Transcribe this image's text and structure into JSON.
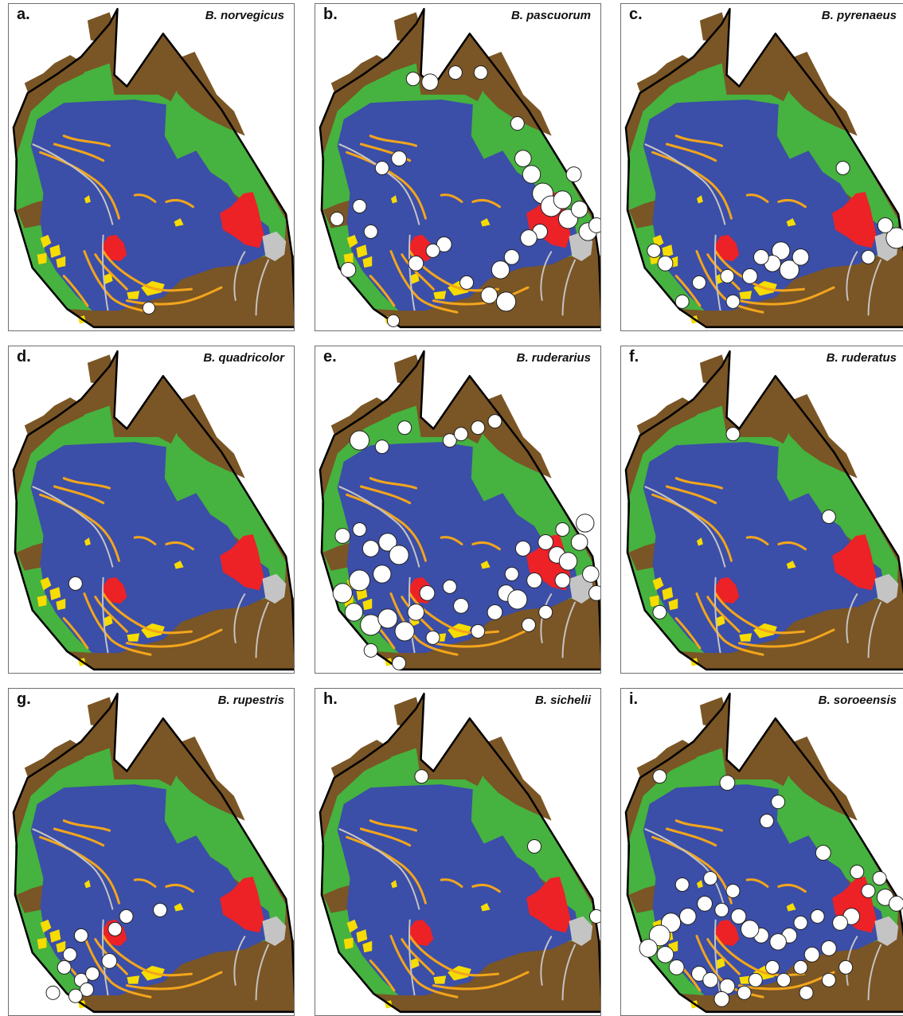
{
  "colors": {
    "blue": "#3b4ea8",
    "green": "#46b23f",
    "brown": "#7a5525",
    "red": "#ec2227",
    "yellow": "#f6dc00",
    "orange": "#f2a51c",
    "gray": "#c4c4c4",
    "outline": "#000000",
    "dot_fill": "#ffffff",
    "dot_stroke": "#222222"
  },
  "panels": [
    {
      "letter": "a.",
      "species": "B. norvegicus",
      "points": [
        [
          0.48,
          0.94,
          0.4
        ]
      ]
    },
    {
      "letter": "b.",
      "species": "B. pascuorum",
      "points": [
        [
          0.33,
          0.22,
          0.5
        ],
        [
          0.39,
          0.23,
          0.7
        ],
        [
          0.48,
          0.2,
          0.5
        ],
        [
          0.57,
          0.2,
          0.5
        ],
        [
          0.7,
          0.36,
          0.5
        ],
        [
          0.72,
          0.47,
          0.7
        ],
        [
          0.75,
          0.52,
          0.8
        ],
        [
          0.79,
          0.58,
          1.0
        ],
        [
          0.82,
          0.62,
          1.0
        ],
        [
          0.86,
          0.6,
          0.8
        ],
        [
          0.88,
          0.66,
          0.9
        ],
        [
          0.92,
          0.63,
          0.7
        ],
        [
          0.95,
          0.7,
          0.8
        ],
        [
          0.9,
          0.52,
          0.6
        ],
        [
          0.98,
          0.68,
          0.6
        ],
        [
          0.78,
          0.7,
          0.6
        ],
        [
          0.74,
          0.72,
          0.7
        ],
        [
          0.68,
          0.78,
          0.6
        ],
        [
          0.64,
          0.82,
          0.8
        ],
        [
          0.6,
          0.9,
          0.7
        ],
        [
          0.66,
          0.92,
          0.9
        ],
        [
          0.52,
          0.86,
          0.5
        ],
        [
          0.44,
          0.74,
          0.6
        ],
        [
          0.4,
          0.76,
          0.5
        ],
        [
          0.34,
          0.8,
          0.6
        ],
        [
          0.18,
          0.7,
          0.5
        ],
        [
          0.14,
          0.62,
          0.5
        ],
        [
          0.1,
          0.82,
          0.6
        ],
        [
          0.06,
          0.66,
          0.5
        ],
        [
          0.22,
          0.5,
          0.5
        ],
        [
          0.28,
          0.47,
          0.6
        ],
        [
          0.26,
          0.98,
          0.4
        ]
      ]
    },
    {
      "letter": "c.",
      "species": "B. pyrenaeus",
      "points": [
        [
          0.77,
          0.5,
          0.5
        ],
        [
          0.55,
          0.76,
          0.8
        ],
        [
          0.58,
          0.82,
          0.9
        ],
        [
          0.62,
          0.78,
          0.7
        ],
        [
          0.52,
          0.8,
          0.7
        ],
        [
          0.48,
          0.78,
          0.6
        ],
        [
          0.44,
          0.84,
          0.6
        ],
        [
          0.36,
          0.84,
          0.5
        ],
        [
          0.14,
          0.8,
          0.6
        ],
        [
          0.1,
          0.76,
          0.5
        ],
        [
          0.26,
          0.86,
          0.5
        ],
        [
          0.2,
          0.92,
          0.5
        ],
        [
          0.38,
          0.92,
          0.5
        ],
        [
          0.86,
          0.78,
          0.5
        ],
        [
          0.96,
          0.72,
          1.0
        ],
        [
          0.92,
          0.68,
          0.6
        ]
      ]
    },
    {
      "letter": "d.",
      "species": "B. quadricolor",
      "points": [
        [
          0.22,
          0.73,
          0.5
        ]
      ]
    },
    {
      "letter": "e.",
      "species": "B. ruderarius",
      "points": [
        [
          0.14,
          0.28,
          0.9
        ],
        [
          0.22,
          0.3,
          0.5
        ],
        [
          0.3,
          0.24,
          0.5
        ],
        [
          0.46,
          0.28,
          0.5
        ],
        [
          0.5,
          0.26,
          0.5
        ],
        [
          0.56,
          0.24,
          0.5
        ],
        [
          0.62,
          0.22,
          0.5
        ],
        [
          0.08,
          0.58,
          0.6
        ],
        [
          0.14,
          0.56,
          0.5
        ],
        [
          0.18,
          0.62,
          0.7
        ],
        [
          0.24,
          0.6,
          0.8
        ],
        [
          0.28,
          0.64,
          0.9
        ],
        [
          0.22,
          0.7,
          0.8
        ],
        [
          0.14,
          0.72,
          1.0
        ],
        [
          0.08,
          0.76,
          0.9
        ],
        [
          0.12,
          0.82,
          0.8
        ],
        [
          0.18,
          0.86,
          1.0
        ],
        [
          0.24,
          0.84,
          0.9
        ],
        [
          0.3,
          0.88,
          0.9
        ],
        [
          0.34,
          0.82,
          0.7
        ],
        [
          0.38,
          0.76,
          0.6
        ],
        [
          0.46,
          0.74,
          0.5
        ],
        [
          0.5,
          0.8,
          0.6
        ],
        [
          0.56,
          0.88,
          0.5
        ],
        [
          0.62,
          0.82,
          0.6
        ],
        [
          0.66,
          0.76,
          0.7
        ],
        [
          0.7,
          0.78,
          0.9
        ],
        [
          0.76,
          0.72,
          0.6
        ],
        [
          0.8,
          0.6,
          0.6
        ],
        [
          0.84,
          0.64,
          0.7
        ],
        [
          0.88,
          0.66,
          0.8
        ],
        [
          0.92,
          0.6,
          0.7
        ],
        [
          0.96,
          0.7,
          0.7
        ],
        [
          0.98,
          0.76,
          0.6
        ],
        [
          0.86,
          0.72,
          0.6
        ],
        [
          0.72,
          0.62,
          0.6
        ],
        [
          0.68,
          0.7,
          0.5
        ],
        [
          0.8,
          0.82,
          0.5
        ],
        [
          0.28,
          0.98,
          0.5
        ],
        [
          0.4,
          0.9,
          0.5
        ],
        [
          0.18,
          0.94,
          0.5
        ],
        [
          0.86,
          0.56,
          0.5
        ],
        [
          0.94,
          0.54,
          0.8
        ],
        [
          0.74,
          0.86,
          0.5
        ]
      ]
    },
    {
      "letter": "f.",
      "species": "B. ruderatus",
      "points": [
        [
          0.38,
          0.26,
          0.5
        ],
        [
          0.72,
          0.52,
          0.5
        ],
        [
          0.12,
          0.82,
          0.5
        ]
      ]
    },
    {
      "letter": "g.",
      "species": "B. rupestris",
      "points": [
        [
          0.36,
          0.74,
          0.5
        ],
        [
          0.4,
          0.7,
          0.5
        ],
        [
          0.52,
          0.68,
          0.5
        ],
        [
          0.24,
          0.76,
          0.5
        ],
        [
          0.2,
          0.82,
          0.5
        ],
        [
          0.24,
          0.9,
          0.5
        ],
        [
          0.28,
          0.88,
          0.5
        ],
        [
          0.26,
          0.93,
          0.5
        ],
        [
          0.34,
          0.84,
          0.6
        ],
        [
          0.18,
          0.86,
          0.5
        ],
        [
          0.22,
          0.95,
          0.5
        ],
        [
          0.14,
          0.94,
          0.5
        ]
      ]
    },
    {
      "letter": "h.",
      "species": "B. sichelii",
      "points": [
        [
          0.36,
          0.26,
          0.5
        ],
        [
          0.76,
          0.48,
          0.5
        ],
        [
          0.98,
          0.7,
          0.5
        ]
      ]
    },
    {
      "letter": "i.",
      "species": "B. soroeensis",
      "points": [
        [
          0.12,
          0.26,
          0.5
        ],
        [
          0.36,
          0.28,
          0.6
        ],
        [
          0.5,
          0.4,
          0.5
        ],
        [
          0.54,
          0.34,
          0.5
        ],
        [
          0.7,
          0.5,
          0.6
        ],
        [
          0.82,
          0.56,
          0.5
        ],
        [
          0.86,
          0.62,
          0.5
        ],
        [
          0.9,
          0.58,
          0.5
        ],
        [
          0.92,
          0.64,
          0.7
        ],
        [
          0.96,
          0.66,
          0.6
        ],
        [
          0.8,
          0.7,
          0.7
        ],
        [
          0.76,
          0.72,
          0.6
        ],
        [
          0.68,
          0.7,
          0.5
        ],
        [
          0.62,
          0.72,
          0.5
        ],
        [
          0.58,
          0.76,
          0.6
        ],
        [
          0.54,
          0.78,
          0.7
        ],
        [
          0.48,
          0.76,
          0.6
        ],
        [
          0.44,
          0.74,
          0.8
        ],
        [
          0.4,
          0.7,
          0.6
        ],
        [
          0.34,
          0.68,
          0.5
        ],
        [
          0.28,
          0.66,
          0.6
        ],
        [
          0.22,
          0.7,
          0.7
        ],
        [
          0.16,
          0.72,
          0.9
        ],
        [
          0.12,
          0.76,
          1.0
        ],
        [
          0.08,
          0.8,
          0.8
        ],
        [
          0.14,
          0.82,
          0.7
        ],
        [
          0.18,
          0.86,
          0.6
        ],
        [
          0.26,
          0.88,
          0.6
        ],
        [
          0.3,
          0.9,
          0.6
        ],
        [
          0.36,
          0.92,
          0.6
        ],
        [
          0.42,
          0.94,
          0.5
        ],
        [
          0.46,
          0.9,
          0.5
        ],
        [
          0.52,
          0.86,
          0.5
        ],
        [
          0.56,
          0.9,
          0.5
        ],
        [
          0.62,
          0.86,
          0.5
        ],
        [
          0.66,
          0.82,
          0.6
        ],
        [
          0.72,
          0.8,
          0.6
        ],
        [
          0.2,
          0.6,
          0.5
        ],
        [
          0.3,
          0.58,
          0.5
        ],
        [
          0.38,
          0.62,
          0.5
        ],
        [
          0.34,
          0.96,
          0.6
        ],
        [
          0.72,
          0.9,
          0.5
        ],
        [
          0.64,
          0.94,
          0.5
        ],
        [
          0.78,
          0.86,
          0.5
        ]
      ]
    }
  ]
}
